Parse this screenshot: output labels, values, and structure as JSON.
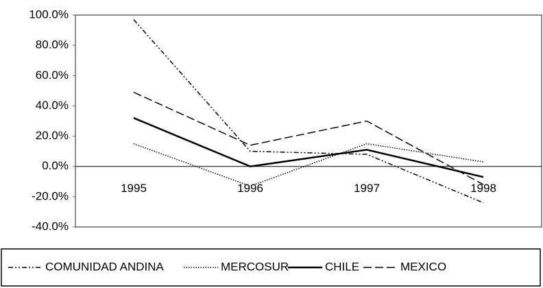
{
  "chart_data": {
    "type": "line",
    "categories": [
      "1995",
      "1996",
      "1997",
      "1998"
    ],
    "series": [
      {
        "name": "COMUNIDAD ANDINA",
        "color": "#000000",
        "dash": "7,3,2,3,2,3",
        "values": [
          97,
          10,
          8,
          -24
        ]
      },
      {
        "name": "MERCOSUR",
        "color": "#000000",
        "dash": "1.5,2",
        "values": [
          15,
          -13,
          15,
          3
        ]
      },
      {
        "name": "CHILE",
        "color": "#000000",
        "dash": "",
        "values": [
          32,
          0,
          11,
          -7
        ]
      },
      {
        "name": "MEXICO",
        "color": "#000000",
        "dash": "12,5",
        "values": [
          49,
          14,
          30,
          -12
        ]
      }
    ],
    "ylim": [
      -40,
      100
    ],
    "yticks": [
      {
        "value": -40,
        "label": "-40.0%"
      },
      {
        "value": -20,
        "label": "-20.0%"
      },
      {
        "value": 0,
        "label": "0.0%"
      },
      {
        "value": 20,
        "label": "20.0%"
      },
      {
        "value": 40,
        "label": "40.0%"
      },
      {
        "value": 60,
        "label": "60.0%"
      },
      {
        "value": 80,
        "label": "80.0%"
      },
      {
        "value": 100,
        "label": "100.0%"
      }
    ],
    "legend": "bottom"
  }
}
